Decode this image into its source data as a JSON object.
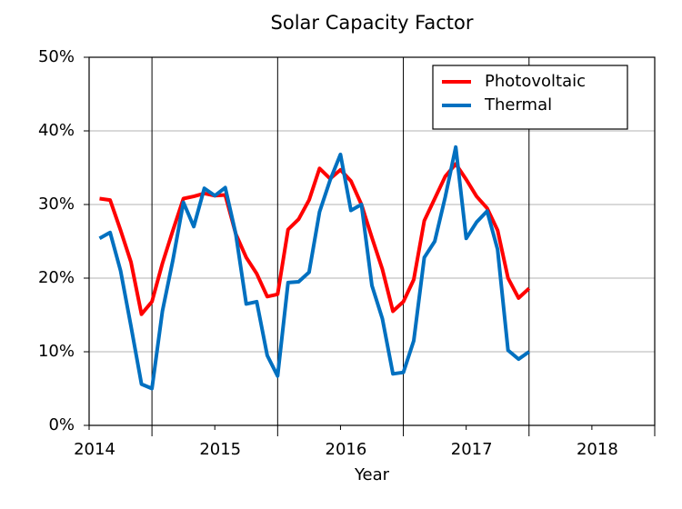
{
  "chart_data": {
    "type": "line",
    "title": "Solar Capacity Factor",
    "x_label": "Year",
    "x": [
      2014.083,
      2014.167,
      2014.25,
      2014.333,
      2014.417,
      2014.5,
      2014.583,
      2014.667,
      2014.75,
      2014.833,
      2014.917,
      2015,
      2015.083,
      2015.167,
      2015.25,
      2015.333,
      2015.417,
      2015.5,
      2015.583,
      2015.667,
      2015.75,
      2015.833,
      2015.917,
      2016,
      2016.083,
      2016.167,
      2016.25,
      2016.333,
      2016.417,
      2016.5,
      2016.583,
      2016.667,
      2016.75,
      2016.833,
      2016.917,
      2017,
      2017.083,
      2017.167,
      2017.25,
      2017.333,
      2017.417,
      2017.5
    ],
    "series": [
      {
        "name": "Photovoltaic",
        "color": "#ff0000",
        "values": [
          30.8,
          30.6,
          26.5,
          22.2,
          15.1,
          16.8,
          22,
          26.5,
          30.8,
          31.1,
          31.5,
          31.2,
          31.3,
          26,
          22.8,
          20.6,
          17.5,
          17.8,
          26.6,
          28,
          30.6,
          34.9,
          33.5,
          34.7,
          33.2,
          30,
          25.5,
          21.2,
          15.5,
          16.8,
          19.8,
          27.8,
          30.8,
          33.8,
          35.5,
          33.4,
          31.1,
          29.5,
          26.5,
          20,
          17.3,
          18.6
        ]
      },
      {
        "name": "Thermal",
        "color": "#0070c0",
        "values": [
          25.4,
          26.2,
          21,
          13.5,
          5.6,
          5,
          15.5,
          22.5,
          30.3,
          27,
          32.2,
          31.2,
          32.3,
          26,
          16.5,
          16.8,
          9.5,
          6.7,
          19.4,
          19.5,
          20.8,
          29,
          33.3,
          36.8,
          29.2,
          30,
          19,
          14.5,
          7,
          7.2,
          11.5,
          22.8,
          25,
          31,
          37.8,
          25.4,
          27.6,
          29.1,
          23.9,
          10.2,
          9,
          10
        ]
      }
    ],
    "xlim": [
      2014,
      2018.5
    ],
    "xticks": [
      2014,
      2015,
      2016,
      2017,
      2018
    ],
    "xgrid": [
      2014.5,
      2015.5,
      2016.5,
      2017.5,
      2018.5
    ],
    "ylim": [
      0,
      50
    ],
    "yticks": [
      {
        "value": 0,
        "label": "0%"
      },
      {
        "value": 10,
        "label": "10%"
      },
      {
        "value": 20,
        "label": "20%"
      },
      {
        "value": 30,
        "label": "30%"
      },
      {
        "value": 40,
        "label": "40%"
      },
      {
        "value": 50,
        "label": "50%"
      }
    ],
    "grid": true,
    "legend": "upper right"
  }
}
